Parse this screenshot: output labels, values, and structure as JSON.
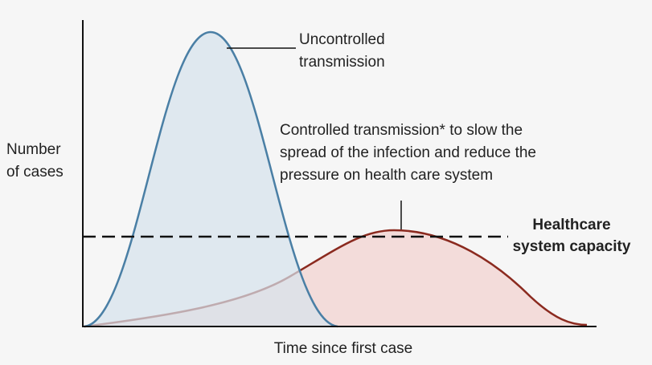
{
  "y_axis_label": [
    "Number",
    "of cases"
  ],
  "x_axis_label": "Time since first case",
  "uncontrolled_label": [
    "Uncontrolled",
    "transmission"
  ],
  "controlled_label": [
    "Controlled transmission* to slow the",
    "spread of the infection and reduce the",
    "pressure on health care system"
  ],
  "capacity_label": [
    "Healthcare",
    "system capacity"
  ]
}
